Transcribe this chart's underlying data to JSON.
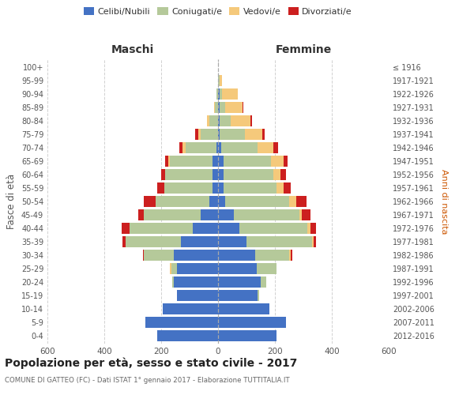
{
  "age_groups": [
    "0-4",
    "5-9",
    "10-14",
    "15-19",
    "20-24",
    "25-29",
    "30-34",
    "35-39",
    "40-44",
    "45-49",
    "50-54",
    "55-59",
    "60-64",
    "65-69",
    "70-74",
    "75-79",
    "80-84",
    "85-89",
    "90-94",
    "95-99",
    "100+"
  ],
  "birth_years": [
    "2012-2016",
    "2007-2011",
    "2002-2006",
    "1997-2001",
    "1992-1996",
    "1987-1991",
    "1982-1986",
    "1977-1981",
    "1972-1976",
    "1967-1971",
    "1962-1966",
    "1957-1961",
    "1952-1956",
    "1947-1951",
    "1942-1946",
    "1937-1941",
    "1932-1936",
    "1927-1931",
    "1922-1926",
    "1917-1921",
    "≤ 1916"
  ],
  "male": {
    "celibi": [
      215,
      255,
      195,
      145,
      155,
      145,
      155,
      130,
      90,
      60,
      30,
      20,
      20,
      20,
      5,
      0,
      0,
      0,
      0,
      0,
      0
    ],
    "coniugati": [
      0,
      0,
      0,
      0,
      5,
      20,
      105,
      195,
      220,
      200,
      190,
      170,
      165,
      150,
      110,
      60,
      30,
      10,
      5,
      0,
      0
    ],
    "vedovi": [
      0,
      0,
      0,
      0,
      0,
      5,
      0,
      0,
      0,
      0,
      0,
      0,
      0,
      5,
      10,
      10,
      10,
      5,
      0,
      0,
      0
    ],
    "divorziati": [
      0,
      0,
      0,
      0,
      0,
      0,
      5,
      10,
      30,
      20,
      40,
      25,
      15,
      10,
      10,
      10,
      0,
      0,
      0,
      0,
      0
    ]
  },
  "female": {
    "nubili": [
      205,
      240,
      180,
      140,
      150,
      135,
      130,
      100,
      75,
      55,
      25,
      20,
      20,
      20,
      10,
      5,
      5,
      5,
      5,
      0,
      0
    ],
    "coniugate": [
      0,
      0,
      0,
      5,
      20,
      70,
      120,
      230,
      240,
      230,
      225,
      185,
      175,
      165,
      130,
      90,
      40,
      20,
      10,
      5,
      0
    ],
    "vedove": [
      0,
      0,
      0,
      0,
      0,
      0,
      5,
      5,
      10,
      10,
      25,
      25,
      25,
      45,
      55,
      60,
      70,
      60,
      55,
      10,
      0
    ],
    "divorziate": [
      0,
      0,
      0,
      0,
      0,
      0,
      5,
      10,
      20,
      30,
      35,
      25,
      20,
      15,
      15,
      10,
      5,
      5,
      0,
      0,
      0
    ]
  },
  "colors": {
    "celibi": "#4472c4",
    "coniugati": "#b5c99a",
    "vedovi": "#f5c97b",
    "divorziati": "#cc1f1f"
  },
  "xlim": 600,
  "title": "Popolazione per età, sesso e stato civile - 2017",
  "subtitle": "COMUNE DI GATTEO (FC) - Dati ISTAT 1° gennaio 2017 - Elaborazione TUTTITALIA.IT",
  "ylabel_left": "Fasce di età",
  "ylabel_right": "Anni di nascita",
  "xlabel_left": "Maschi",
  "xlabel_right": "Femmine",
  "legend_labels": [
    "Celibi/Nubili",
    "Coniugati/e",
    "Vedovi/e",
    "Divorziati/e"
  ],
  "bg_color": "#ffffff",
  "grid_color": "#cccccc"
}
